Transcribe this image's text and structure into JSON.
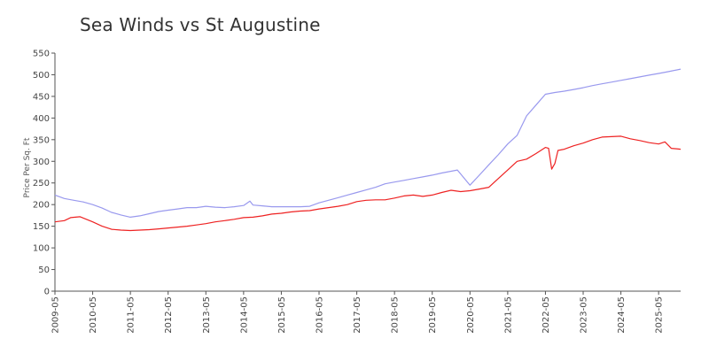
{
  "chart_data": {
    "type": "line",
    "title": "Sea Winds vs St Augustine",
    "ylabel": "Price Per Sq. Ft",
    "xlabel": "",
    "ylim": [
      0,
      550
    ],
    "yticks": [
      0,
      50,
      100,
      150,
      200,
      250,
      300,
      350,
      400,
      450,
      500,
      550
    ],
    "xlim": [
      "2009-05",
      "2025-12"
    ],
    "xticks": [
      "2009-05",
      "2010-05",
      "2011-05",
      "2012-05",
      "2013-05",
      "2014-05",
      "2015-05",
      "2016-05",
      "2017-05",
      "2018-05",
      "2019-05",
      "2020-05",
      "2021-05",
      "2022-05",
      "2023-05",
      "2024-05",
      "2025-05"
    ],
    "grid": false,
    "legend": "none",
    "series": [
      {
        "color": "#9999ee",
        "points": [
          [
            "2009-05",
            222
          ],
          [
            "2009-08",
            214
          ],
          [
            "2009-11",
            210
          ],
          [
            "2010-02",
            206
          ],
          [
            "2010-05",
            200
          ],
          [
            "2010-08",
            192
          ],
          [
            "2010-11",
            182
          ],
          [
            "2011-02",
            176
          ],
          [
            "2011-05",
            171
          ],
          [
            "2011-08",
            174
          ],
          [
            "2011-11",
            179
          ],
          [
            "2012-02",
            184
          ],
          [
            "2012-05",
            187
          ],
          [
            "2012-08",
            190
          ],
          [
            "2012-11",
            193
          ],
          [
            "2013-02",
            193
          ],
          [
            "2013-05",
            196
          ],
          [
            "2013-08",
            194
          ],
          [
            "2013-11",
            193
          ],
          [
            "2014-02",
            195
          ],
          [
            "2014-05",
            198
          ],
          [
            "2014-07",
            208
          ],
          [
            "2014-08",
            199
          ],
          [
            "2014-11",
            197
          ],
          [
            "2015-02",
            195
          ],
          [
            "2015-05",
            195
          ],
          [
            "2015-08",
            195
          ],
          [
            "2015-11",
            195
          ],
          [
            "2016-02",
            196
          ],
          [
            "2016-05",
            204
          ],
          [
            "2016-08",
            210
          ],
          [
            "2016-11",
            216
          ],
          [
            "2017-02",
            222
          ],
          [
            "2017-05",
            228
          ],
          [
            "2017-08",
            234
          ],
          [
            "2017-11",
            240
          ],
          [
            "2018-02",
            248
          ],
          [
            "2018-05",
            252
          ],
          [
            "2018-08",
            256
          ],
          [
            "2018-11",
            260
          ],
          [
            "2019-02",
            264
          ],
          [
            "2019-05",
            268
          ],
          [
            "2019-08",
            273
          ],
          [
            "2019-11",
            277
          ],
          [
            "2020-01",
            280
          ],
          [
            "2020-05",
            245
          ],
          [
            "2020-08",
            268
          ],
          [
            "2020-11",
            292
          ],
          [
            "2021-02",
            315
          ],
          [
            "2021-05",
            340
          ],
          [
            "2021-08",
            360
          ],
          [
            "2021-11",
            405
          ],
          [
            "2022-02",
            430
          ],
          [
            "2022-05",
            455
          ],
          [
            "2022-08",
            459
          ],
          [
            "2022-11",
            462
          ],
          [
            "2023-02",
            466
          ],
          [
            "2023-05",
            470
          ],
          [
            "2023-08",
            475
          ],
          [
            "2023-11",
            479
          ],
          [
            "2024-02",
            483
          ],
          [
            "2024-05",
            487
          ],
          [
            "2024-08",
            491
          ],
          [
            "2024-11",
            495
          ],
          [
            "2025-02",
            499
          ],
          [
            "2025-05",
            503
          ],
          [
            "2025-08",
            507
          ],
          [
            "2025-12",
            513
          ]
        ]
      },
      {
        "color": "#ee2222",
        "points": [
          [
            "2009-05",
            160
          ],
          [
            "2009-08",
            163
          ],
          [
            "2009-10",
            170
          ],
          [
            "2010-01",
            172
          ],
          [
            "2010-05",
            160
          ],
          [
            "2010-08",
            150
          ],
          [
            "2010-11",
            143
          ],
          [
            "2011-02",
            141
          ],
          [
            "2011-05",
            140
          ],
          [
            "2011-08",
            141
          ],
          [
            "2011-11",
            142
          ],
          [
            "2012-02",
            144
          ],
          [
            "2012-05",
            146
          ],
          [
            "2012-08",
            148
          ],
          [
            "2012-11",
            150
          ],
          [
            "2013-02",
            153
          ],
          [
            "2013-05",
            156
          ],
          [
            "2013-08",
            160
          ],
          [
            "2013-11",
            163
          ],
          [
            "2014-02",
            166
          ],
          [
            "2014-05",
            170
          ],
          [
            "2014-08",
            171
          ],
          [
            "2014-11",
            174
          ],
          [
            "2015-02",
            178
          ],
          [
            "2015-05",
            180
          ],
          [
            "2015-08",
            183
          ],
          [
            "2015-11",
            185
          ],
          [
            "2016-02",
            186
          ],
          [
            "2016-05",
            190
          ],
          [
            "2016-08",
            193
          ],
          [
            "2016-11",
            196
          ],
          [
            "2017-02",
            200
          ],
          [
            "2017-05",
            207
          ],
          [
            "2017-08",
            210
          ],
          [
            "2017-11",
            211
          ],
          [
            "2018-02",
            211
          ],
          [
            "2018-05",
            215
          ],
          [
            "2018-08",
            220
          ],
          [
            "2018-11",
            222
          ],
          [
            "2019-02",
            219
          ],
          [
            "2019-05",
            222
          ],
          [
            "2019-08",
            228
          ],
          [
            "2019-11",
            233
          ],
          [
            "2020-02",
            230
          ],
          [
            "2020-05",
            232
          ],
          [
            "2020-08",
            236
          ],
          [
            "2020-11",
            240
          ],
          [
            "2021-02",
            260
          ],
          [
            "2021-05",
            280
          ],
          [
            "2021-08",
            300
          ],
          [
            "2021-11",
            305
          ],
          [
            "2022-02",
            318
          ],
          [
            "2022-05",
            332
          ],
          [
            "2022-06",
            330
          ],
          [
            "2022-07",
            282
          ],
          [
            "2022-08",
            295
          ],
          [
            "2022-09",
            325
          ],
          [
            "2022-11",
            328
          ],
          [
            "2023-02",
            336
          ],
          [
            "2023-05",
            342
          ],
          [
            "2023-08",
            350
          ],
          [
            "2023-11",
            356
          ],
          [
            "2024-02",
            357
          ],
          [
            "2024-05",
            358
          ],
          [
            "2024-08",
            352
          ],
          [
            "2024-11",
            348
          ],
          [
            "2025-02",
            343
          ],
          [
            "2025-05",
            340
          ],
          [
            "2025-07",
            345
          ],
          [
            "2025-09",
            330
          ],
          [
            "2025-12",
            328
          ]
        ]
      }
    ]
  }
}
